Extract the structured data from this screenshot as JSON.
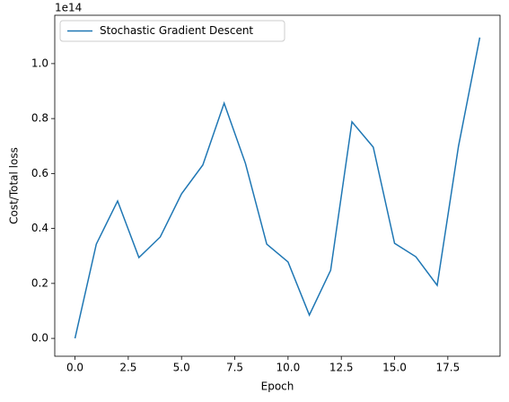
{
  "chart_data": {
    "type": "line",
    "x_label": "Epoch",
    "y_label": "Cost/Total loss",
    "y_offset_label": "1e14",
    "x": [
      0,
      1,
      2,
      3,
      4,
      5,
      6,
      7,
      8,
      9,
      10,
      11,
      12,
      13,
      14,
      15,
      16,
      17,
      18,
      19
    ],
    "series": [
      {
        "name": "Stochastic Gradient Descent",
        "color": "#1f77b4",
        "values": [
          0.0,
          0.343,
          0.5,
          0.294,
          0.369,
          0.526,
          0.631,
          0.856,
          0.637,
          0.343,
          0.278,
          0.085,
          0.248,
          0.788,
          0.696,
          0.346,
          0.297,
          0.193,
          0.699,
          1.095
        ]
      }
    ],
    "xlim": [
      -0.95,
      19.95
    ],
    "xticks": [
      {
        "value": 0,
        "label": "0.0"
      },
      2.5,
      {
        "value": 5,
        "label": "5.0"
      },
      7.5,
      {
        "value": 10,
        "label": "10.0"
      },
      12.5,
      {
        "value": 15,
        "label": "15.0"
      },
      17.5
    ],
    "ylim": [
      -0.065,
      1.176
    ],
    "yticks": [
      {
        "value": 0,
        "label": "0.0"
      },
      0.2,
      0.4,
      0.6,
      0.8,
      {
        "value": 1,
        "label": "1.0"
      }
    ],
    "grid": false,
    "legend": "upper left"
  }
}
